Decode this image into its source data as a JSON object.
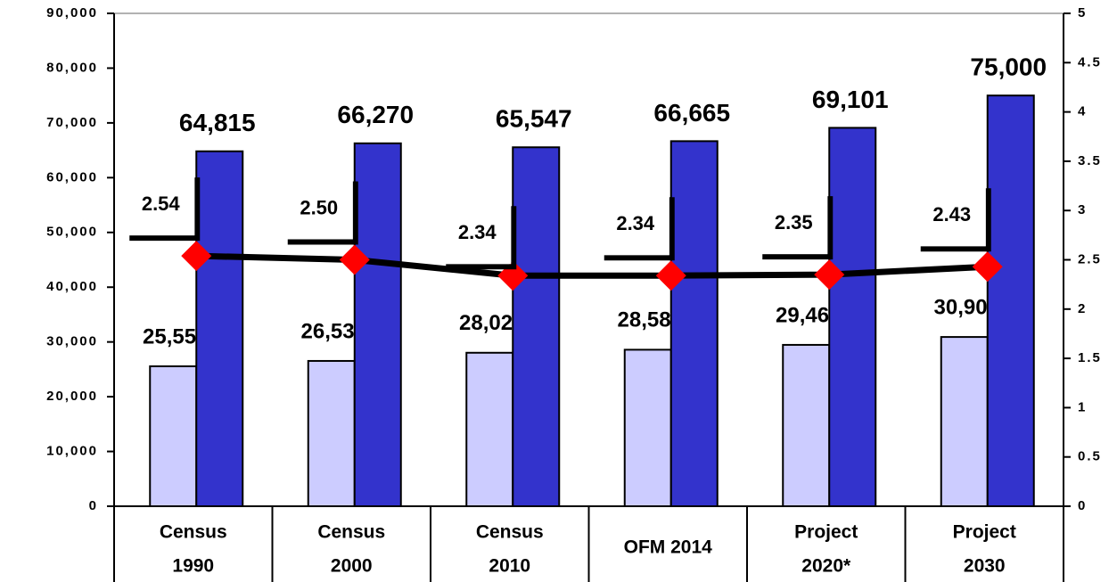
{
  "chart_data": {
    "type": "bar",
    "categories": [
      [
        "Census",
        "1990"
      ],
      [
        "Census",
        "2000"
      ],
      [
        "Census",
        "2010"
      ],
      [
        "OFM 2014"
      ],
      [
        "Project",
        "2020*"
      ],
      [
        "Project",
        "2030"
      ]
    ],
    "series": [
      {
        "color": "#ccccff",
        "values": [
          25556,
          26535,
          28028,
          28580,
          29467,
          30907
        ],
        "value_labels": [
          "25,556",
          "26,535",
          "28,028",
          "28,580",
          "29,467",
          "30,907"
        ]
      },
      {
        "color": "#3333cc",
        "values": [
          64815,
          66270,
          65547,
          66665,
          69101,
          75000
        ],
        "value_labels": [
          "64,815",
          "66,270",
          "65,547",
          "66,665",
          "69,101",
          "75,000"
        ]
      },
      {
        "type": "line",
        "axis": "y2",
        "color": "#000000",
        "marker_color": "#ff0000",
        "values": [
          2.54,
          2.5,
          2.34,
          2.34,
          2.35,
          2.43
        ],
        "value_labels": [
          "2.54",
          "2.50",
          "2.34",
          "2.34",
          "2.35",
          "2.43"
        ]
      }
    ],
    "ylim": [
      0,
      90000
    ],
    "yticks": [
      0,
      {
        "value": 10000,
        "label": "10,000"
      },
      {
        "value": 20000,
        "label": "20,000"
      },
      {
        "value": 30000,
        "label": "30,000"
      },
      {
        "value": 40000,
        "label": "40,000"
      },
      {
        "value": 50000,
        "label": "50,000"
      },
      {
        "value": 60000,
        "label": "60,000"
      },
      {
        "value": 70000,
        "label": "70,000"
      },
      {
        "value": 80000,
        "label": "80,000"
      },
      {
        "value": 90000,
        "label": "90,000"
      }
    ],
    "y2lim": [
      0,
      5
    ],
    "y2ticks": [
      0,
      0.5,
      1,
      1.5,
      2,
      2.5,
      3,
      3.5,
      4,
      4.5,
      5
    ],
    "grid": false
  }
}
